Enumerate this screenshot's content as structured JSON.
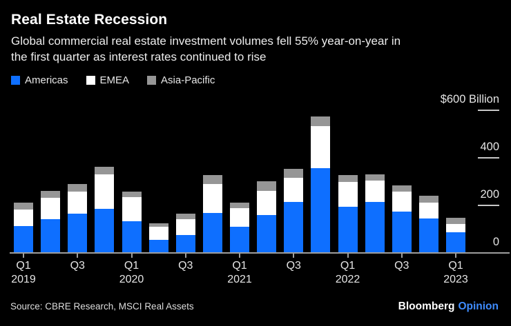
{
  "header": {
    "title": "Real Estate Recession",
    "subtitle_lines": [
      "Global commercial real estate investment volumes fell 55% year-on-year in",
      "the first quarter as interest rates continued to rise"
    ]
  },
  "legend": {
    "items": [
      {
        "label": "Americas",
        "color": "#0e6fff"
      },
      {
        "label": "EMEA",
        "color": "#ffffff"
      },
      {
        "label": "Asia-Pacific",
        "color": "#969696"
      }
    ]
  },
  "chart_data": {
    "type": "bar",
    "stacked": true,
    "title": "Real Estate Recession",
    "unit": "USD billions",
    "categories": [
      "Q1 2019",
      "Q2 2019",
      "Q3 2019",
      "Q4 2019",
      "Q1 2020",
      "Q2 2020",
      "Q3 2020",
      "Q4 2020",
      "Q1 2021",
      "Q2 2021",
      "Q3 2021",
      "Q4 2021",
      "Q1 2022",
      "Q2 2022",
      "Q3 2022",
      "Q4 2022",
      "Q1 2023"
    ],
    "series": [
      {
        "name": "Americas",
        "color": "#0e6fff",
        "values": [
          111,
          140,
          162,
          184,
          130,
          51,
          73,
          164,
          107,
          157,
          213,
          354,
          191,
          211,
          172,
          141,
          83
        ]
      },
      {
        "name": "EMEA",
        "color": "#ffffff",
        "values": [
          69,
          88,
          92,
          143,
          102,
          56,
          65,
          123,
          79,
          101,
          100,
          176,
          106,
          89,
          82,
          67,
          36
        ]
      },
      {
        "name": "Asia-Pacific",
        "color": "#969696",
        "values": [
          29,
          29,
          32,
          31,
          22,
          15,
          23,
          38,
          24,
          40,
          39,
          41,
          29,
          27,
          26,
          30,
          27
        ]
      }
    ],
    "ylim": [
      0,
      600
    ],
    "y_axis": {
      "top_label": "$600 Billion",
      "ticks": [
        600,
        400,
        200,
        0
      ]
    },
    "x_axis": {
      "ticks": [
        {
          "label": "Q1",
          "year": "2019"
        },
        {
          "label": "Q3",
          "year": ""
        },
        {
          "label": "Q1",
          "year": "2020"
        },
        {
          "label": "Q3",
          "year": ""
        },
        {
          "label": "Q1",
          "year": "2021"
        },
        {
          "label": "Q3",
          "year": ""
        },
        {
          "label": "Q1",
          "year": "2022"
        },
        {
          "label": "Q3",
          "year": ""
        },
        {
          "label": "Q1",
          "year": "2023"
        }
      ]
    },
    "legend_position": "top",
    "grid": "right-tick-dashes"
  },
  "footer": {
    "source": "Source: CBRE Research, MSCI Real Assets",
    "brand": "Bloomberg",
    "brand_suffix": "Opinion"
  }
}
